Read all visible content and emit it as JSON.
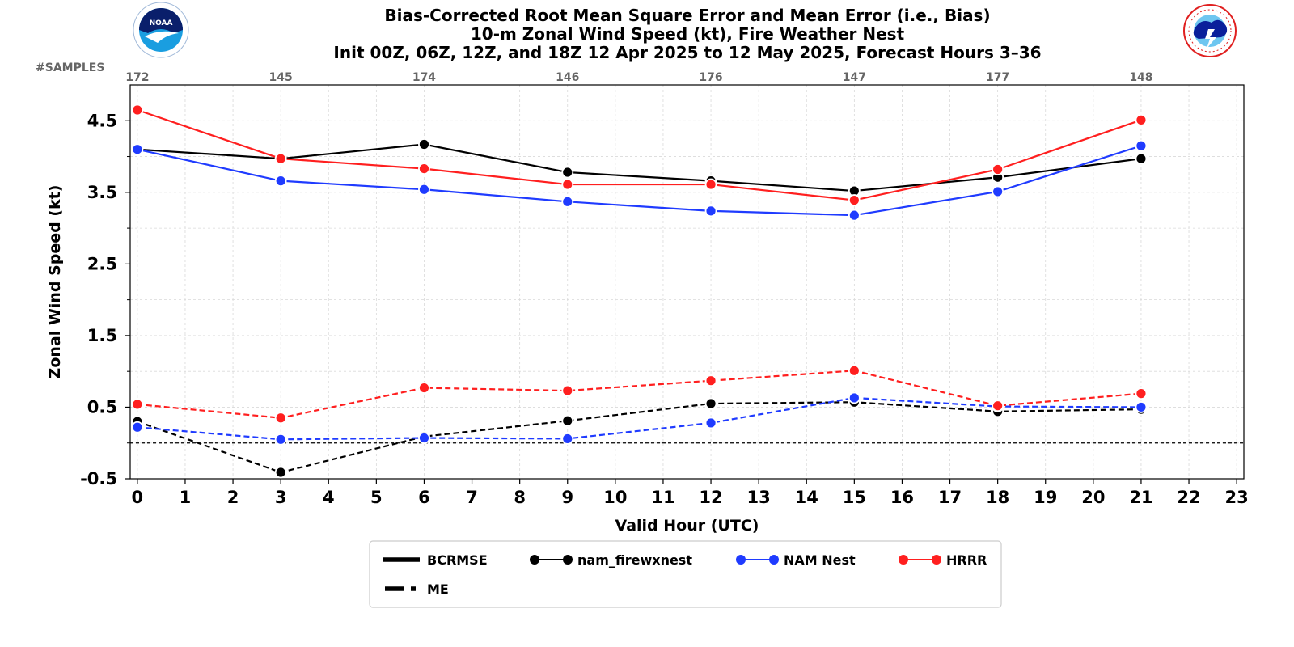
{
  "chart_data": {
    "type": "line",
    "title_lines": [
      "Bias-Corrected Root Mean Square Error and Mean Error (i.e., Bias)",
      "10-m Zonal Wind Speed (kt), Fire Weather Nest",
      "Init 00Z, 06Z, 12Z, and 18Z 12 Apr 2025 to 12 May 2025, Forecast Hours 3–36"
    ],
    "xlabel": "Valid Hour (UTC)",
    "ylabel": "Zonal Wind Speed (kt)",
    "xlim": [
      -0.15,
      23.15
    ],
    "ylim": [
      -0.5,
      5.0
    ],
    "x_ticks": [
      0,
      1,
      2,
      3,
      4,
      5,
      6,
      7,
      8,
      9,
      10,
      11,
      12,
      13,
      14,
      15,
      16,
      17,
      18,
      19,
      20,
      21,
      22,
      23
    ],
    "y_ticks": [
      -0.5,
      0.5,
      1.5,
      2.5,
      3.5,
      4.5
    ],
    "y_tick_labels": [
      "-0.5",
      "0.5",
      "1.5",
      "2.5",
      "3.5",
      "4.5"
    ],
    "y_minor_ticks": [
      0.0,
      1.0,
      2.0,
      3.0,
      4.0
    ],
    "grid": true,
    "zero_line": true,
    "samples_label": "#SAMPLES",
    "samples": [
      {
        "x": 0,
        "n": "172"
      },
      {
        "x": 3,
        "n": "145"
      },
      {
        "x": 6,
        "n": "174"
      },
      {
        "x": 9,
        "n": "146"
      },
      {
        "x": 12,
        "n": "176"
      },
      {
        "x": 15,
        "n": "147"
      },
      {
        "x": 18,
        "n": "177"
      },
      {
        "x": 21,
        "n": "148"
      }
    ],
    "x": [
      0,
      3,
      6,
      9,
      12,
      15,
      18,
      21
    ],
    "series": [
      {
        "name": "nam_firewxnest",
        "metric": "BCRMSE",
        "color": "#000000",
        "values": [
          4.1,
          3.97,
          4.17,
          3.78,
          3.66,
          3.52,
          3.71,
          3.97
        ]
      },
      {
        "name": "NAM Nest",
        "metric": "BCRMSE",
        "color": "#1f3bff",
        "values": [
          4.1,
          3.66,
          3.54,
          3.37,
          3.24,
          3.18,
          3.51,
          4.15
        ]
      },
      {
        "name": "HRRR",
        "metric": "BCRMSE",
        "color": "#ff1f1f",
        "values": [
          4.65,
          3.97,
          3.83,
          3.61,
          3.61,
          3.39,
          3.82,
          4.51
        ]
      },
      {
        "name": "nam_firewxnest",
        "metric": "ME",
        "color": "#000000",
        "values": [
          0.3,
          -0.41,
          0.09,
          0.31,
          0.55,
          0.57,
          0.44,
          0.47
        ]
      },
      {
        "name": "NAM Nest",
        "metric": "ME",
        "color": "#1f3bff",
        "values": [
          0.22,
          0.05,
          0.07,
          0.06,
          0.28,
          0.63,
          0.51,
          0.5
        ]
      },
      {
        "name": "HRRR",
        "metric": "ME",
        "color": "#ff1f1f",
        "values": [
          0.54,
          0.35,
          0.77,
          0.73,
          0.87,
          1.01,
          0.52,
          0.69
        ]
      }
    ],
    "legend": {
      "placement": "bottom-center",
      "style_items": [
        {
          "label": "BCRMSE",
          "style": "solid"
        },
        {
          "label": "ME",
          "style": "dashed"
        }
      ],
      "model_items": [
        {
          "label": "nam_firewxnest",
          "color": "#000000"
        },
        {
          "label": "NAM Nest",
          "color": "#1f3bff"
        },
        {
          "label": "HRRR",
          "color": "#ff1f1f"
        }
      ]
    }
  }
}
